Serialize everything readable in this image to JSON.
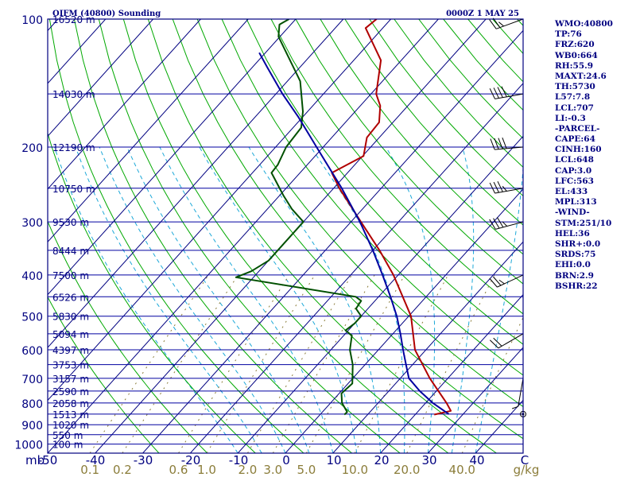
{
  "chart_data": {
    "type": "line",
    "title": "OIFM (40800) Sounding",
    "timestamp": "0000Z  1 MAY 25",
    "diagram": "skew-T log-P",
    "y_scale": "log pressure (mb)",
    "pressure_unit": "mb",
    "mixing_ratio_unit": "g/kg",
    "pressure_ticks": [
      100,
      200,
      300,
      400,
      500,
      600,
      700,
      800,
      900,
      1000
    ],
    "pressure_range": [
      100,
      1050
    ],
    "temperature_ticks": [
      "-50",
      "-40",
      "-30",
      "-20",
      "-10",
      "0",
      "10",
      "20",
      "30",
      "40",
      "C"
    ],
    "temperature_range_at_1050mb": [
      -50,
      50
    ],
    "mixing_ratio_ticks": [
      "0.1",
      "0.2",
      "0.6",
      "1.0",
      "2.0",
      "3.0",
      "5.0",
      "10.0",
      "20.0",
      "40.0"
    ],
    "height_levels": [
      {
        "label": "16520 m",
        "p": 100
      },
      {
        "label": "14030 m",
        "p": 150
      },
      {
        "label": "12190 m",
        "p": 200
      },
      {
        "label": "10750 m",
        "p": 250
      },
      {
        "label": "9530 m",
        "p": 300
      },
      {
        "label": "8444 m",
        "p": 350
      },
      {
        "label": "7500 m",
        "p": 400
      },
      {
        "label": "6526 m",
        "p": 450
      },
      {
        "label": "5830 m",
        "p": 500
      },
      {
        "label": "5094 m",
        "p": 550
      },
      {
        "label": "4397 m",
        "p": 600
      },
      {
        "label": "3753 m",
        "p": 650
      },
      {
        "label": "3157 m",
        "p": 700
      },
      {
        "label": "2590 m",
        "p": 750
      },
      {
        "label": "2058 m",
        "p": 800
      },
      {
        "label": "1513 m",
        "p": 850
      },
      {
        "label": "1020 m",
        "p": 900
      },
      {
        "label": "550 m",
        "p": 950
      },
      {
        "label": "100 m",
        "p": 1000
      }
    ],
    "series": [
      {
        "key": "temperature",
        "color": "#b00000",
        "points": [
          {
            "p": 852,
            "t": 24.0
          },
          {
            "p": 835,
            "t": 26.8
          },
          {
            "p": 800,
            "t": 24.4
          },
          {
            "p": 700,
            "t": 16.2
          },
          {
            "p": 600,
            "t": 7.7
          },
          {
            "p": 500,
            "t": 0.5
          },
          {
            "p": 400,
            "t": -11.0
          },
          {
            "p": 350,
            "t": -18.6
          },
          {
            "p": 300,
            "t": -27.9
          },
          {
            "p": 250,
            "t": -38.8
          },
          {
            "p": 230,
            "t": -43.3
          },
          {
            "p": 210,
            "t": -39.8
          },
          {
            "p": 190,
            "t": -42.6
          },
          {
            "p": 175,
            "t": -42.9
          },
          {
            "p": 160,
            "t": -45.8
          },
          {
            "p": 150,
            "t": -48.9
          },
          {
            "p": 125,
            "t": -54.3
          },
          {
            "p": 105,
            "t": -63.6
          },
          {
            "p": 100,
            "t": -63.0
          }
        ]
      },
      {
        "key": "dewpoint",
        "color": "#005000",
        "points": [
          {
            "p": 852,
            "t": 5.1
          },
          {
            "p": 840,
            "t": 5.2
          },
          {
            "p": 800,
            "t": 2.4
          },
          {
            "p": 760,
            "t": 0.5
          },
          {
            "p": 720,
            "t": 0.9
          },
          {
            "p": 650,
            "t": -2.6
          },
          {
            "p": 600,
            "t": -6.0
          },
          {
            "p": 555,
            "t": -8.3
          },
          {
            "p": 540,
            "t": -10.6
          },
          {
            "p": 520,
            "t": -10.0
          },
          {
            "p": 500,
            "t": -10.0
          },
          {
            "p": 480,
            "t": -12.5
          },
          {
            "p": 460,
            "t": -12.9
          },
          {
            "p": 450,
            "t": -14.8
          },
          {
            "p": 405,
            "t": -43.7
          },
          {
            "p": 392,
            "t": -41.6
          },
          {
            "p": 370,
            "t": -40.0
          },
          {
            "p": 300,
            "t": -40.0
          },
          {
            "p": 280,
            "t": -44.8
          },
          {
            "p": 260,
            "t": -49.2
          },
          {
            "p": 230,
            "t": -56.0
          },
          {
            "p": 220,
            "t": -56.2
          },
          {
            "p": 200,
            "t": -57.8
          },
          {
            "p": 180,
            "t": -58.3
          },
          {
            "p": 165,
            "t": -61.0
          },
          {
            "p": 140,
            "t": -67.3
          },
          {
            "p": 110,
            "t": -80.3
          },
          {
            "p": 103,
            "t": -82.4
          },
          {
            "p": 100,
            "t": -81.4
          }
        ]
      },
      {
        "key": "parcel",
        "color": "#0000a0",
        "points": [
          {
            "p": 850,
            "t": 27.0
          },
          {
            "p": 800,
            "t": 21.5
          },
          {
            "p": 750,
            "t": 16.5
          },
          {
            "p": 700,
            "t": 11.8
          },
          {
            "p": 650,
            "t": 8.6
          },
          {
            "p": 600,
            "t": 5.2
          },
          {
            "p": 550,
            "t": 1.6
          },
          {
            "p": 500,
            "t": -2.5
          },
          {
            "p": 450,
            "t": -7.5
          },
          {
            "p": 400,
            "t": -13.3
          },
          {
            "p": 350,
            "t": -20.0
          },
          {
            "p": 300,
            "t": -28.1
          },
          {
            "p": 250,
            "t": -38.3
          },
          {
            "p": 200,
            "t": -51.4
          },
          {
            "p": 170,
            "t": -60.9
          },
          {
            "p": 150,
            "t": -68.6
          },
          {
            "p": 130,
            "t": -76.8
          },
          {
            "p": 120,
            "t": -81.3
          }
        ]
      }
    ],
    "wind_barbs": [
      {
        "p": 100,
        "direction_deg": 250,
        "speed_kt": 25
      },
      {
        "p": 150,
        "direction_deg": 260,
        "speed_kt": 40
      },
      {
        "p": 200,
        "direction_deg": 265,
        "speed_kt": 40
      },
      {
        "p": 250,
        "direction_deg": 260,
        "speed_kt": 35
      },
      {
        "p": 300,
        "direction_deg": 255,
        "speed_kt": 35
      },
      {
        "p": 400,
        "direction_deg": 245,
        "speed_kt": 25
      },
      {
        "p": 550,
        "direction_deg": 240,
        "speed_kt": 20
      },
      {
        "p": 700,
        "direction_deg": 190,
        "speed_kt": 5
      },
      {
        "p": 850,
        "direction_deg": 0,
        "speed_kt": 0
      }
    ],
    "indices": [
      "WMO:40800",
      "TP:76",
      "FRZ:620",
      "WB0:664",
      "RH:55.9",
      "MAXT:24.6",
      "TH:5730",
      "L57:7.8",
      "LCL:707",
      "LI:-0.3",
      "-PARCEL-",
      "CAPE:64",
      "CINH:160",
      "LCL:648",
      "CAP:3.0",
      "LFC:563",
      "EL:433",
      "MPL:313",
      "-WIND-",
      "STM:251/10",
      "HEL:36",
      "SHR+:0.0",
      "SRDS:75",
      "EHI:0.0",
      "BRN:2.9",
      "BSHR:22"
    ],
    "colors": {
      "frame": "#000080",
      "isobar": "#0000a0",
      "isotherm": "#000080",
      "dry_adiabat": "#00a800",
      "moist_adiabat": "#1ca8d8",
      "mixing_ratio": "#8b7d3a",
      "mixing_ratio_label": "#8b7d3a"
    }
  }
}
